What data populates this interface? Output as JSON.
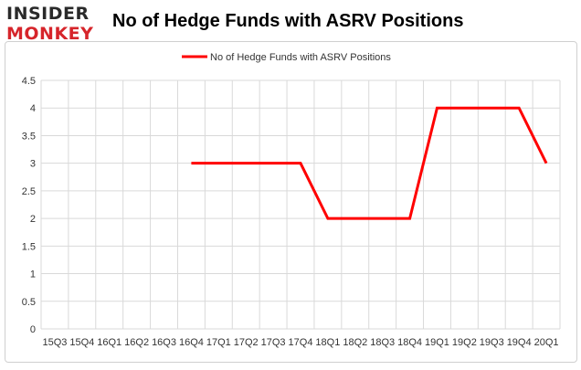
{
  "logo": {
    "line1": "INSIDER",
    "line2": "MONKEY"
  },
  "chart_data": {
    "type": "line",
    "title": "No of Hedge Funds with ASRV Positions",
    "xlabel": "",
    "ylabel": "",
    "categories": [
      "15Q3",
      "15Q4",
      "16Q1",
      "16Q2",
      "16Q3",
      "16Q4",
      "17Q1",
      "17Q2",
      "17Q3",
      "17Q4",
      "18Q1",
      "18Q2",
      "18Q3",
      "18Q4",
      "19Q1",
      "19Q2",
      "19Q3",
      "19Q4",
      "20Q1"
    ],
    "series": [
      {
        "name": "No of Hedge Funds with ASRV Positions",
        "values": [
          null,
          null,
          null,
          null,
          null,
          3,
          3,
          3,
          3,
          3,
          2,
          2,
          2,
          2,
          4,
          4,
          4,
          4,
          3
        ]
      }
    ],
    "ylim": [
      0,
      4.5
    ],
    "yticks": [
      0,
      0.5,
      1,
      1.5,
      2,
      2.5,
      3,
      3.5,
      4,
      4.5
    ],
    "ytick_labels": [
      "0",
      "0.5",
      "1",
      "1.5",
      "2",
      "2.5",
      "3",
      "3.5",
      "4",
      "4.5"
    ],
    "grid": true,
    "legend": "top-center",
    "line_color": "#ff0000",
    "grid_color": "#d9d9d9"
  }
}
